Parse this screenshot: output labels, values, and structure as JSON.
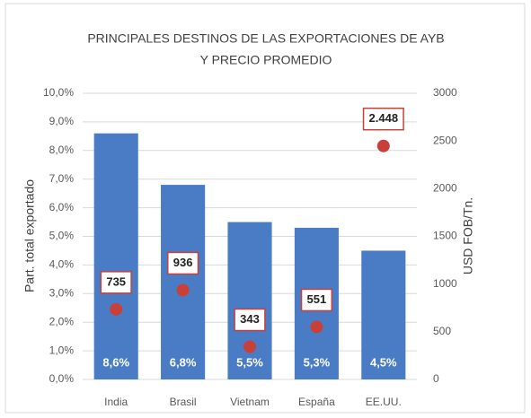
{
  "chart_data": {
    "type": "bar",
    "title": [
      "PRINCIPALES DESTINOS DE LAS EXPORTACIONES DE AYB",
      "Y PRECIO PROMEDIO"
    ],
    "y_label": "Part. total exportado",
    "y2_label": "USD FOB/Tn.",
    "categories": [
      "India",
      "Brasil",
      "Vietnam",
      "España",
      "EE.UU."
    ],
    "series": [
      {
        "type": "bar",
        "color": "#4a7cc6",
        "values": [
          8.6,
          6.8,
          5.5,
          5.3,
          4.5
        ],
        "value_labels": [
          "8,6%",
          "6,8%",
          "5,5%",
          "5,3%",
          "4,5%"
        ]
      },
      {
        "type": "scatter",
        "axis": "y2",
        "color": "#c8403a",
        "values": [
          735,
          936,
          343,
          551,
          2448
        ],
        "value_labels": [
          "735",
          "936",
          "343",
          "551",
          "2.448"
        ]
      }
    ],
    "ylim": [
      0,
      10
    ],
    "yticks": [
      {
        "value": 0,
        "label": "0,0%"
      },
      {
        "value": 1,
        "label": "1,0%"
      },
      {
        "value": 2,
        "label": "2,0%"
      },
      {
        "value": 3,
        "label": "3,0%"
      },
      {
        "value": 4,
        "label": "4,0%"
      },
      {
        "value": 5,
        "label": "5,0%"
      },
      {
        "value": 6,
        "label": "6,0%"
      },
      {
        "value": 7,
        "label": "7,0%"
      },
      {
        "value": 8,
        "label": "8,0%"
      },
      {
        "value": 9,
        "label": "9,0%"
      },
      {
        "value": 10,
        "label": "10,0%"
      }
    ],
    "y2lim": [
      0,
      3000
    ],
    "y2ticks": [
      0,
      500,
      1000,
      1500,
      2000,
      2500,
      3000
    ],
    "grid": true
  }
}
